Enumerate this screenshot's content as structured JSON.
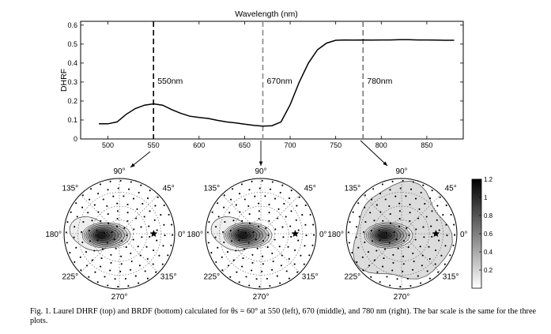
{
  "chart_data": [
    {
      "type": "line",
      "title": "Wavelength (nm)",
      "xlabel": "Wavelength (nm)",
      "ylabel": "DHRF",
      "xlim": [
        470,
        890
      ],
      "ylim": [
        0,
        0.62
      ],
      "xticks": [
        "500",
        "550",
        "600",
        "650",
        "700",
        "750",
        "800",
        "850"
      ],
      "yticks": [
        "0",
        "0.1",
        "0.2",
        "0.3",
        "0.4",
        "0.5",
        "0.6"
      ],
      "series": [
        {
          "x": [
            490,
            500,
            510,
            520,
            530,
            540,
            550,
            560,
            570,
            580,
            590,
            600,
            610,
            620,
            630,
            640,
            650,
            660,
            670,
            680,
            690,
            700,
            710,
            720,
            730,
            740,
            750,
            760,
            770,
            780,
            790,
            800,
            810,
            820,
            830,
            840,
            850,
            860,
            870,
            880
          ],
          "y": [
            0.08,
            0.08,
            0.09,
            0.13,
            0.16,
            0.178,
            0.185,
            0.178,
            0.155,
            0.135,
            0.12,
            0.113,
            0.108,
            0.098,
            0.09,
            0.085,
            0.078,
            0.072,
            0.068,
            0.07,
            0.09,
            0.18,
            0.3,
            0.4,
            0.47,
            0.505,
            0.52,
            0.522,
            0.521,
            0.522,
            0.521,
            0.522,
            0.522,
            0.523,
            0.523,
            0.522,
            0.522,
            0.521,
            0.52,
            0.52
          ]
        }
      ],
      "annotations": [
        {
          "x": 550,
          "label": "550nm"
        },
        {
          "x": 670,
          "label": "670nm"
        },
        {
          "x": 780,
          "label": "780nm"
        }
      ]
    },
    {
      "type": "heatmap",
      "projection": "polar",
      "angle_labels": [
        "90°",
        "45°",
        "0°",
        "315°",
        "270°",
        "225°",
        "180°",
        "135°"
      ],
      "panels": [
        {
          "wavelength_nm": 550
        },
        {
          "wavelength_nm": 670
        },
        {
          "wavelength_nm": 780
        }
      ],
      "colorbar": {
        "range": [
          0,
          1.2
        ],
        "ticks": [
          "0.2",
          "0.4",
          "0.6",
          "0.8",
          "1",
          "1.2"
        ],
        "colors": [
          "#ffffff",
          "#000000"
        ]
      }
    }
  ],
  "caption": "Fig. 1. Laurel DHRF (top) and BRDF (bottom) calculated for θs = 60° at 550 (left), 670 (middle), and 780 nm (right). The bar scale is the same for the three plots."
}
